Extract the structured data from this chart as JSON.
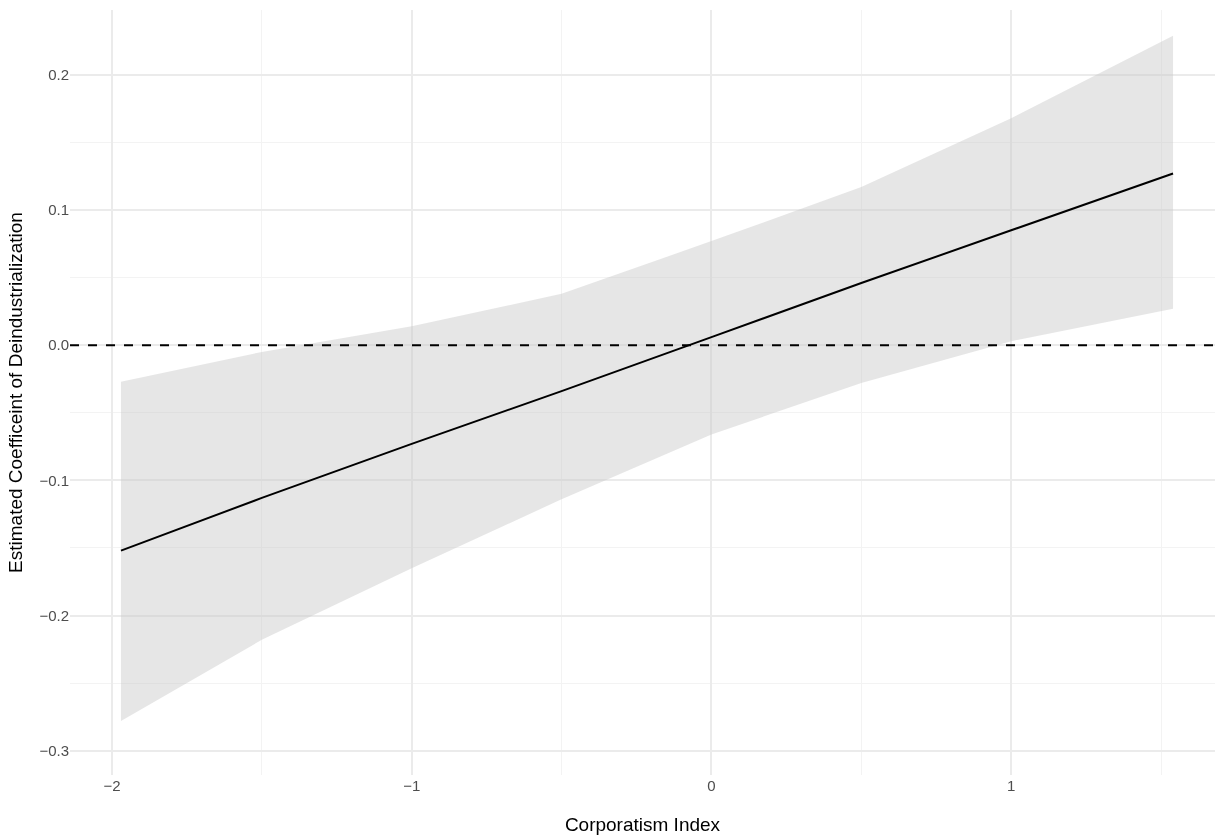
{
  "chart_data": {
    "type": "line",
    "xlabel": "Corporatism Index",
    "ylabel": "Estimated Coefficeint of Deindustrialization",
    "x": [
      -1.97,
      -1.5,
      -1,
      -0.5,
      0,
      0.5,
      1,
      1.54
    ],
    "series": [
      {
        "color": "#000000",
        "values": [
          -0.152,
          -0.113,
          -0.073,
          -0.034,
          0.006,
          0.046,
          0.085,
          0.127
        ],
        "lower": [
          -0.278,
          -0.218,
          -0.165,
          -0.114,
          -0.066,
          -0.028,
          0.003,
          0.027
        ],
        "upper": [
          -0.027,
          -0.005,
          0.014,
          0.038,
          0.077,
          0.117,
          0.168,
          0.229
        ]
      }
    ],
    "xlim": [
      -2.14,
      1.68
    ],
    "ylim": [
      -0.318,
      0.248
    ],
    "xticks": [
      {
        "value": -2,
        "label": "−2"
      },
      {
        "value": -1.5,
        "label": null
      },
      {
        "value": -1,
        "label": "−1"
      },
      {
        "value": -0.5,
        "label": null
      },
      0,
      {
        "value": 0.5,
        "label": null
      },
      1,
      {
        "value": 1.5,
        "label": null
      }
    ],
    "yticks": [
      {
        "value": -0.3,
        "label": "−0.3"
      },
      {
        "value": -0.25,
        "label": null
      },
      {
        "value": -0.2,
        "label": "−0.2"
      },
      {
        "value": -0.15,
        "label": null
      },
      {
        "value": -0.1,
        "label": "−0.1"
      },
      {
        "value": -0.05,
        "label": null
      },
      {
        "value": 0,
        "label": "0.0"
      },
      {
        "value": 0.05,
        "label": null
      },
      {
        "value": 0.1,
        "label": "0.1"
      },
      {
        "value": 0.15,
        "label": null
      },
      {
        "value": 0.2,
        "label": "0.2"
      }
    ],
    "ref_lines": [
      {
        "axis": "y",
        "value": 0,
        "color": "#000000",
        "line_style": "dashed"
      }
    ],
    "grid": true,
    "marker": "none",
    "line_style": "solid"
  }
}
